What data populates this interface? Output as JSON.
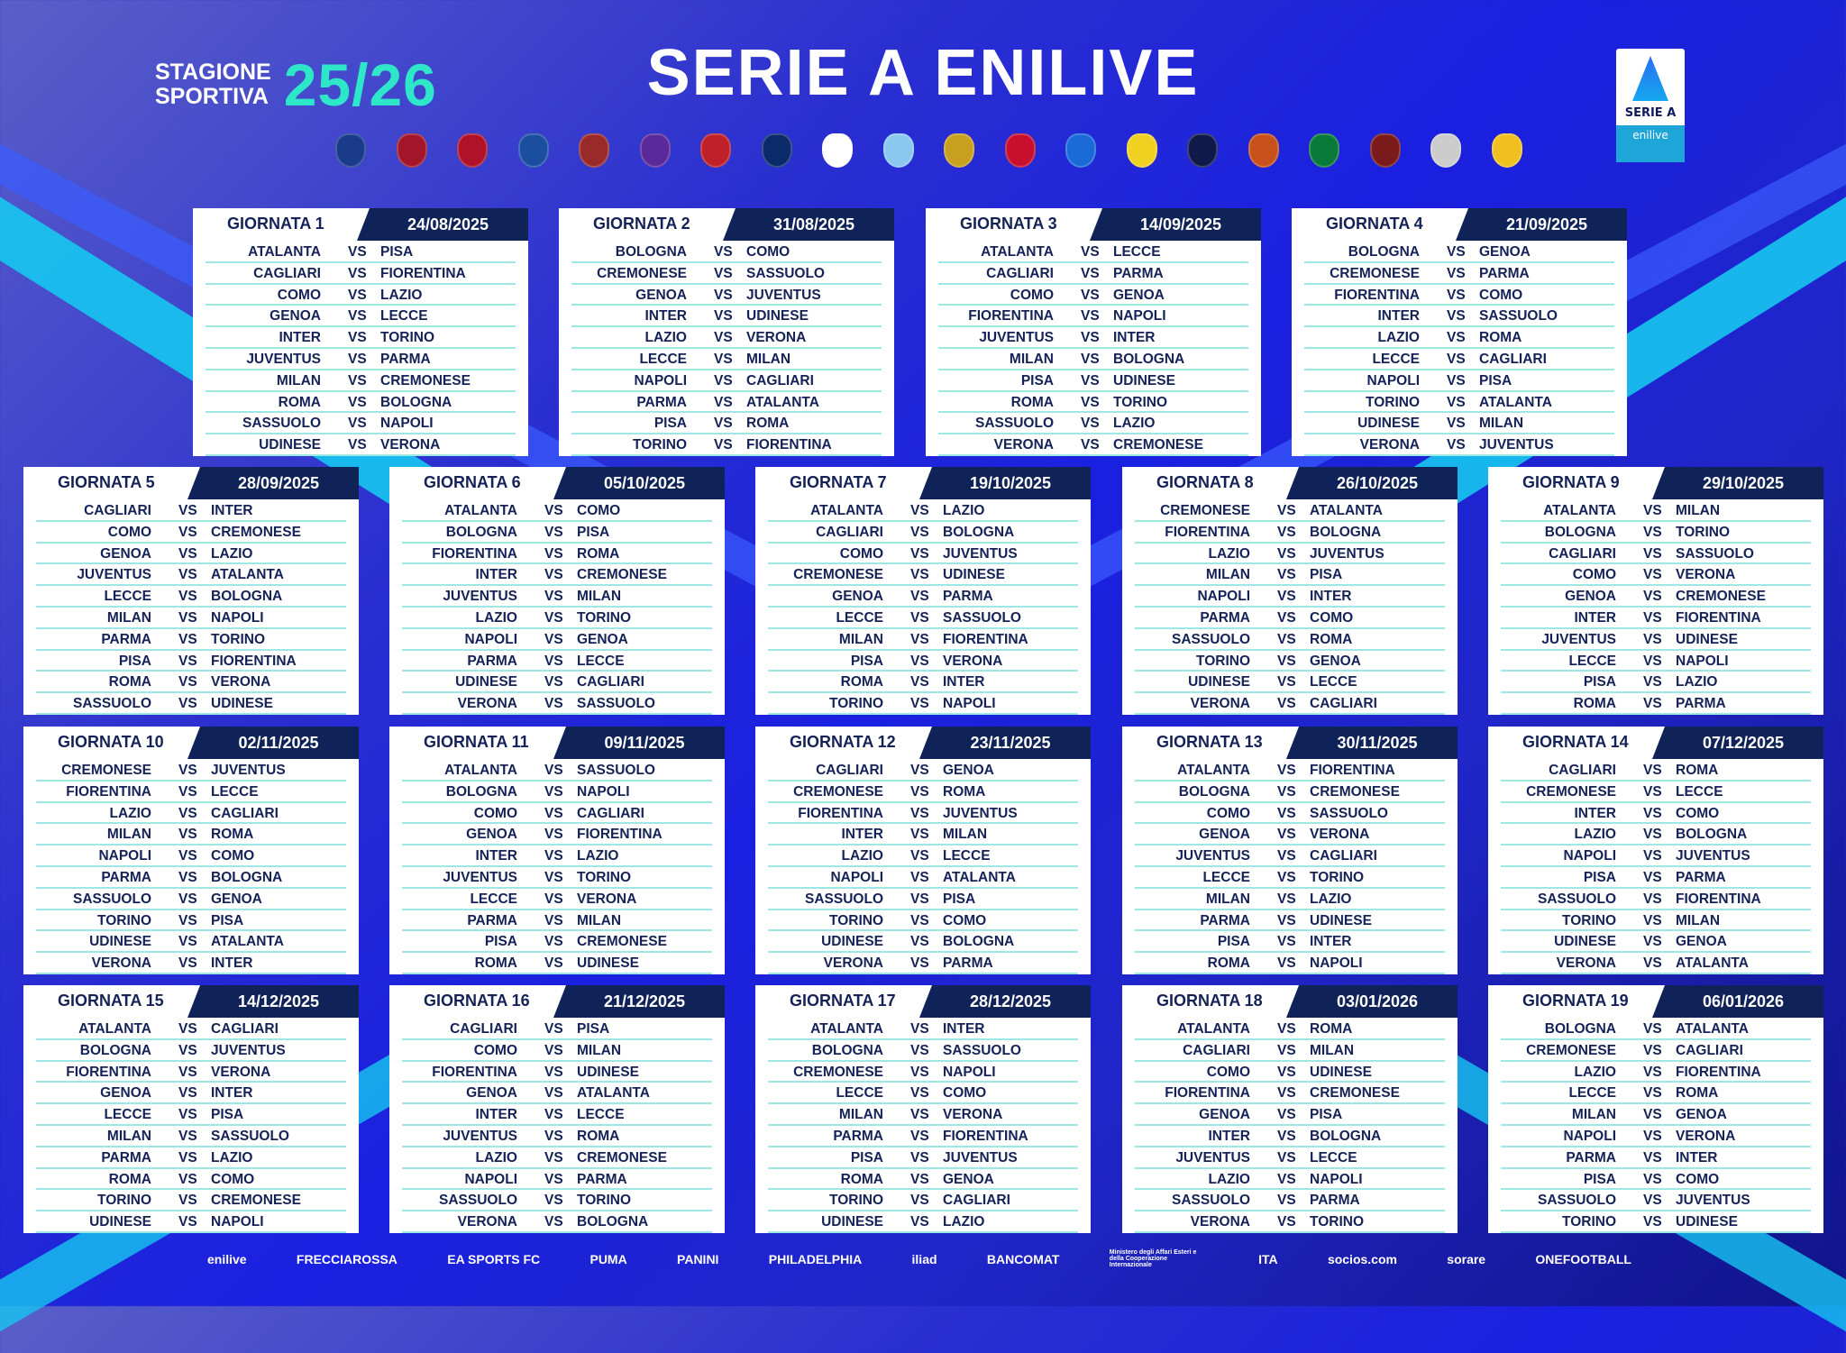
{
  "header": {
    "season_label_1": "STAGIONE",
    "season_label_2": "SPORTIVA",
    "season": "25/26",
    "title": "SERIE A ENILIVE"
  },
  "logo": {
    "text": "SERIE A",
    "sub": "enilive"
  },
  "crests": [
    {
      "name": "atalanta",
      "color": "#1a3a8a"
    },
    {
      "name": "bologna",
      "color": "#a3162a"
    },
    {
      "name": "cagliari",
      "color": "#b0122a"
    },
    {
      "name": "como",
      "color": "#1a4fa0"
    },
    {
      "name": "cremonese",
      "color": "#9a2a2a"
    },
    {
      "name": "fiorentina",
      "color": "#5a2a9a"
    },
    {
      "name": "genoa",
      "color": "#c0202a"
    },
    {
      "name": "inter",
      "color": "#0a2a6a"
    },
    {
      "name": "juventus",
      "color": "#ffffff"
    },
    {
      "name": "lazio",
      "color": "#8ac8f0"
    },
    {
      "name": "lecce",
      "color": "#c8a020"
    },
    {
      "name": "milan",
      "color": "#c8102e"
    },
    {
      "name": "napoli",
      "color": "#1a6ad8"
    },
    {
      "name": "parma",
      "color": "#f0d020"
    },
    {
      "name": "pisa",
      "color": "#101a4a"
    },
    {
      "name": "roma",
      "color": "#c8501a"
    },
    {
      "name": "sassuolo",
      "color": "#0a7a3a"
    },
    {
      "name": "torino",
      "color": "#7a1a1a"
    },
    {
      "name": "udinese",
      "color": "#cccccc"
    },
    {
      "name": "verona",
      "color": "#f0c020"
    }
  ],
  "rounds": [
    {
      "label": "GIORNATA 1",
      "date": "24/08/2025",
      "matches": [
        [
          "ATALANTA",
          "PISA"
        ],
        [
          "CAGLIARI",
          "FIORENTINA"
        ],
        [
          "COMO",
          "LAZIO"
        ],
        [
          "GENOA",
          "LECCE"
        ],
        [
          "INTER",
          "TORINO"
        ],
        [
          "JUVENTUS",
          "PARMA"
        ],
        [
          "MILAN",
          "CREMONESE"
        ],
        [
          "ROMA",
          "BOLOGNA"
        ],
        [
          "SASSUOLO",
          "NAPOLI"
        ],
        [
          "UDINESE",
          "VERONA"
        ]
      ]
    },
    {
      "label": "GIORNATA 2",
      "date": "31/08/2025",
      "matches": [
        [
          "BOLOGNA",
          "COMO"
        ],
        [
          "CREMONESE",
          "SASSUOLO"
        ],
        [
          "GENOA",
          "JUVENTUS"
        ],
        [
          "INTER",
          "UDINESE"
        ],
        [
          "LAZIO",
          "VERONA"
        ],
        [
          "LECCE",
          "MILAN"
        ],
        [
          "NAPOLI",
          "CAGLIARI"
        ],
        [
          "PARMA",
          "ATALANTA"
        ],
        [
          "PISA",
          "ROMA"
        ],
        [
          "TORINO",
          "FIORENTINA"
        ]
      ]
    },
    {
      "label": "GIORNATA 3",
      "date": "14/09/2025",
      "matches": [
        [
          "ATALANTA",
          "LECCE"
        ],
        [
          "CAGLIARI",
          "PARMA"
        ],
        [
          "COMO",
          "GENOA"
        ],
        [
          "FIORENTINA",
          "NAPOLI"
        ],
        [
          "JUVENTUS",
          "INTER"
        ],
        [
          "MILAN",
          "BOLOGNA"
        ],
        [
          "PISA",
          "UDINESE"
        ],
        [
          "ROMA",
          "TORINO"
        ],
        [
          "SASSUOLO",
          "LAZIO"
        ],
        [
          "VERONA",
          "CREMONESE"
        ]
      ]
    },
    {
      "label": "GIORNATA 4",
      "date": "21/09/2025",
      "matches": [
        [
          "BOLOGNA",
          "GENOA"
        ],
        [
          "CREMONESE",
          "PARMA"
        ],
        [
          "FIORENTINA",
          "COMO"
        ],
        [
          "INTER",
          "SASSUOLO"
        ],
        [
          "LAZIO",
          "ROMA"
        ],
        [
          "LECCE",
          "CAGLIARI"
        ],
        [
          "NAPOLI",
          "PISA"
        ],
        [
          "TORINO",
          "ATALANTA"
        ],
        [
          "UDINESE",
          "MILAN"
        ],
        [
          "VERONA",
          "JUVENTUS"
        ]
      ]
    },
    {
      "label": "GIORNATA 5",
      "date": "28/09/2025",
      "matches": [
        [
          "CAGLIARI",
          "INTER"
        ],
        [
          "COMO",
          "CREMONESE"
        ],
        [
          "GENOA",
          "LAZIO"
        ],
        [
          "JUVENTUS",
          "ATALANTA"
        ],
        [
          "LECCE",
          "BOLOGNA"
        ],
        [
          "MILAN",
          "NAPOLI"
        ],
        [
          "PARMA",
          "TORINO"
        ],
        [
          "PISA",
          "FIORENTINA"
        ],
        [
          "ROMA",
          "VERONA"
        ],
        [
          "SASSUOLO",
          "UDINESE"
        ]
      ]
    },
    {
      "label": "GIORNATA 6",
      "date": "05/10/2025",
      "matches": [
        [
          "ATALANTA",
          "COMO"
        ],
        [
          "BOLOGNA",
          "PISA"
        ],
        [
          "FIORENTINA",
          "ROMA"
        ],
        [
          "INTER",
          "CREMONESE"
        ],
        [
          "JUVENTUS",
          "MILAN"
        ],
        [
          "LAZIO",
          "TORINO"
        ],
        [
          "NAPOLI",
          "GENOA"
        ],
        [
          "PARMA",
          "LECCE"
        ],
        [
          "UDINESE",
          "CAGLIARI"
        ],
        [
          "VERONA",
          "SASSUOLO"
        ]
      ]
    },
    {
      "label": "GIORNATA 7",
      "date": "19/10/2025",
      "matches": [
        [
          "ATALANTA",
          "LAZIO"
        ],
        [
          "CAGLIARI",
          "BOLOGNA"
        ],
        [
          "COMO",
          "JUVENTUS"
        ],
        [
          "CREMONESE",
          "UDINESE"
        ],
        [
          "GENOA",
          "PARMA"
        ],
        [
          "LECCE",
          "SASSUOLO"
        ],
        [
          "MILAN",
          "FIORENTINA"
        ],
        [
          "PISA",
          "VERONA"
        ],
        [
          "ROMA",
          "INTER"
        ],
        [
          "TORINO",
          "NAPOLI"
        ]
      ]
    },
    {
      "label": "GIORNATA 8",
      "date": "26/10/2025",
      "matches": [
        [
          "CREMONESE",
          "ATALANTA"
        ],
        [
          "FIORENTINA",
          "BOLOGNA"
        ],
        [
          "LAZIO",
          "JUVENTUS"
        ],
        [
          "MILAN",
          "PISA"
        ],
        [
          "NAPOLI",
          "INTER"
        ],
        [
          "PARMA",
          "COMO"
        ],
        [
          "SASSUOLO",
          "ROMA"
        ],
        [
          "TORINO",
          "GENOA"
        ],
        [
          "UDINESE",
          "LECCE"
        ],
        [
          "VERONA",
          "CAGLIARI"
        ]
      ]
    },
    {
      "label": "GIORNATA 9",
      "date": "29/10/2025",
      "matches": [
        [
          "ATALANTA",
          "MILAN"
        ],
        [
          "BOLOGNA",
          "TORINO"
        ],
        [
          "CAGLIARI",
          "SASSUOLO"
        ],
        [
          "COMO",
          "VERONA"
        ],
        [
          "GENOA",
          "CREMONESE"
        ],
        [
          "INTER",
          "FIORENTINA"
        ],
        [
          "JUVENTUS",
          "UDINESE"
        ],
        [
          "LECCE",
          "NAPOLI"
        ],
        [
          "PISA",
          "LAZIO"
        ],
        [
          "ROMA",
          "PARMA"
        ]
      ]
    },
    {
      "label": "GIORNATA 10",
      "date": "02/11/2025",
      "matches": [
        [
          "CREMONESE",
          "JUVENTUS"
        ],
        [
          "FIORENTINA",
          "LECCE"
        ],
        [
          "LAZIO",
          "CAGLIARI"
        ],
        [
          "MILAN",
          "ROMA"
        ],
        [
          "NAPOLI",
          "COMO"
        ],
        [
          "PARMA",
          "BOLOGNA"
        ],
        [
          "SASSUOLO",
          "GENOA"
        ],
        [
          "TORINO",
          "PISA"
        ],
        [
          "UDINESE",
          "ATALANTA"
        ],
        [
          "VERONA",
          "INTER"
        ]
      ]
    },
    {
      "label": "GIORNATA 11",
      "date": "09/11/2025",
      "matches": [
        [
          "ATALANTA",
          "SASSUOLO"
        ],
        [
          "BOLOGNA",
          "NAPOLI"
        ],
        [
          "COMO",
          "CAGLIARI"
        ],
        [
          "GENOA",
          "FIORENTINA"
        ],
        [
          "INTER",
          "LAZIO"
        ],
        [
          "JUVENTUS",
          "TORINO"
        ],
        [
          "LECCE",
          "VERONA"
        ],
        [
          "PARMA",
          "MILAN"
        ],
        [
          "PISA",
          "CREMONESE"
        ],
        [
          "ROMA",
          "UDINESE"
        ]
      ]
    },
    {
      "label": "GIORNATA 12",
      "date": "23/11/2025",
      "matches": [
        [
          "CAGLIARI",
          "GENOA"
        ],
        [
          "CREMONESE",
          "ROMA"
        ],
        [
          "FIORENTINA",
          "JUVENTUS"
        ],
        [
          "INTER",
          "MILAN"
        ],
        [
          "LAZIO",
          "LECCE"
        ],
        [
          "NAPOLI",
          "ATALANTA"
        ],
        [
          "SASSUOLO",
          "PISA"
        ],
        [
          "TORINO",
          "COMO"
        ],
        [
          "UDINESE",
          "BOLOGNA"
        ],
        [
          "VERONA",
          "PARMA"
        ]
      ]
    },
    {
      "label": "GIORNATA 13",
      "date": "30/11/2025",
      "matches": [
        [
          "ATALANTA",
          "FIORENTINA"
        ],
        [
          "BOLOGNA",
          "CREMONESE"
        ],
        [
          "COMO",
          "SASSUOLO"
        ],
        [
          "GENOA",
          "VERONA"
        ],
        [
          "JUVENTUS",
          "CAGLIARI"
        ],
        [
          "LECCE",
          "TORINO"
        ],
        [
          "MILAN",
          "LAZIO"
        ],
        [
          "PARMA",
          "UDINESE"
        ],
        [
          "PISA",
          "INTER"
        ],
        [
          "ROMA",
          "NAPOLI"
        ]
      ]
    },
    {
      "label": "GIORNATA 14",
      "date": "07/12/2025",
      "matches": [
        [
          "CAGLIARI",
          "ROMA"
        ],
        [
          "CREMONESE",
          "LECCE"
        ],
        [
          "INTER",
          "COMO"
        ],
        [
          "LAZIO",
          "BOLOGNA"
        ],
        [
          "NAPOLI",
          "JUVENTUS"
        ],
        [
          "PISA",
          "PARMA"
        ],
        [
          "SASSUOLO",
          "FIORENTINA"
        ],
        [
          "TORINO",
          "MILAN"
        ],
        [
          "UDINESE",
          "GENOA"
        ],
        [
          "VERONA",
          "ATALANTA"
        ]
      ]
    },
    {
      "label": "GIORNATA 15",
      "date": "14/12/2025",
      "matches": [
        [
          "ATALANTA",
          "CAGLIARI"
        ],
        [
          "BOLOGNA",
          "JUVENTUS"
        ],
        [
          "FIORENTINA",
          "VERONA"
        ],
        [
          "GENOA",
          "INTER"
        ],
        [
          "LECCE",
          "PISA"
        ],
        [
          "MILAN",
          "SASSUOLO"
        ],
        [
          "PARMA",
          "LAZIO"
        ],
        [
          "ROMA",
          "COMO"
        ],
        [
          "TORINO",
          "CREMONESE"
        ],
        [
          "UDINESE",
          "NAPOLI"
        ]
      ]
    },
    {
      "label": "GIORNATA 16",
      "date": "21/12/2025",
      "matches": [
        [
          "CAGLIARI",
          "PISA"
        ],
        [
          "COMO",
          "MILAN"
        ],
        [
          "FIORENTINA",
          "UDINESE"
        ],
        [
          "GENOA",
          "ATALANTA"
        ],
        [
          "INTER",
          "LECCE"
        ],
        [
          "JUVENTUS",
          "ROMA"
        ],
        [
          "LAZIO",
          "CREMONESE"
        ],
        [
          "NAPOLI",
          "PARMA"
        ],
        [
          "SASSUOLO",
          "TORINO"
        ],
        [
          "VERONA",
          "BOLOGNA"
        ]
      ]
    },
    {
      "label": "GIORNATA 17",
      "date": "28/12/2025",
      "matches": [
        [
          "ATALANTA",
          "INTER"
        ],
        [
          "BOLOGNA",
          "SASSUOLO"
        ],
        [
          "CREMONESE",
          "NAPOLI"
        ],
        [
          "LECCE",
          "COMO"
        ],
        [
          "MILAN",
          "VERONA"
        ],
        [
          "PARMA",
          "FIORENTINA"
        ],
        [
          "PISA",
          "JUVENTUS"
        ],
        [
          "ROMA",
          "GENOA"
        ],
        [
          "TORINO",
          "CAGLIARI"
        ],
        [
          "UDINESE",
          "LAZIO"
        ]
      ]
    },
    {
      "label": "GIORNATA 18",
      "date": "03/01/2026",
      "matches": [
        [
          "ATALANTA",
          "ROMA"
        ],
        [
          "CAGLIARI",
          "MILAN"
        ],
        [
          "COMO",
          "UDINESE"
        ],
        [
          "FIORENTINA",
          "CREMONESE"
        ],
        [
          "GENOA",
          "PISA"
        ],
        [
          "INTER",
          "BOLOGNA"
        ],
        [
          "JUVENTUS",
          "LECCE"
        ],
        [
          "LAZIO",
          "NAPOLI"
        ],
        [
          "SASSUOLO",
          "PARMA"
        ],
        [
          "VERONA",
          "TORINO"
        ]
      ]
    },
    {
      "label": "GIORNATA 19",
      "date": "06/01/2026",
      "matches": [
        [
          "BOLOGNA",
          "ATALANTA"
        ],
        [
          "CREMONESE",
          "CAGLIARI"
        ],
        [
          "LAZIO",
          "FIORENTINA"
        ],
        [
          "LECCE",
          "ROMA"
        ],
        [
          "MILAN",
          "GENOA"
        ],
        [
          "NAPOLI",
          "VERONA"
        ],
        [
          "PARMA",
          "INTER"
        ],
        [
          "PISA",
          "COMO"
        ],
        [
          "SASSUOLO",
          "JUVENTUS"
        ],
        [
          "TORINO",
          "UDINESE"
        ]
      ]
    }
  ],
  "vs_label": "VS",
  "sponsors": [
    "enilive",
    "FRECCIAROSSA",
    "EA SPORTS FC",
    "PUMA",
    "PANINI",
    "PHILADELPHIA",
    "iliad",
    "BANCOMAT",
    "Ministero degli Affari Esteri e della Cooperazione Internazionale",
    "ITA",
    "socios.com",
    "sorare",
    "ONEFOOTBALL"
  ],
  "colors": {
    "card_header": "#0f2358",
    "text": "#142257",
    "divider": "#9de8e4",
    "season": "#2ee6c8",
    "stripe": "#16c6f0"
  }
}
